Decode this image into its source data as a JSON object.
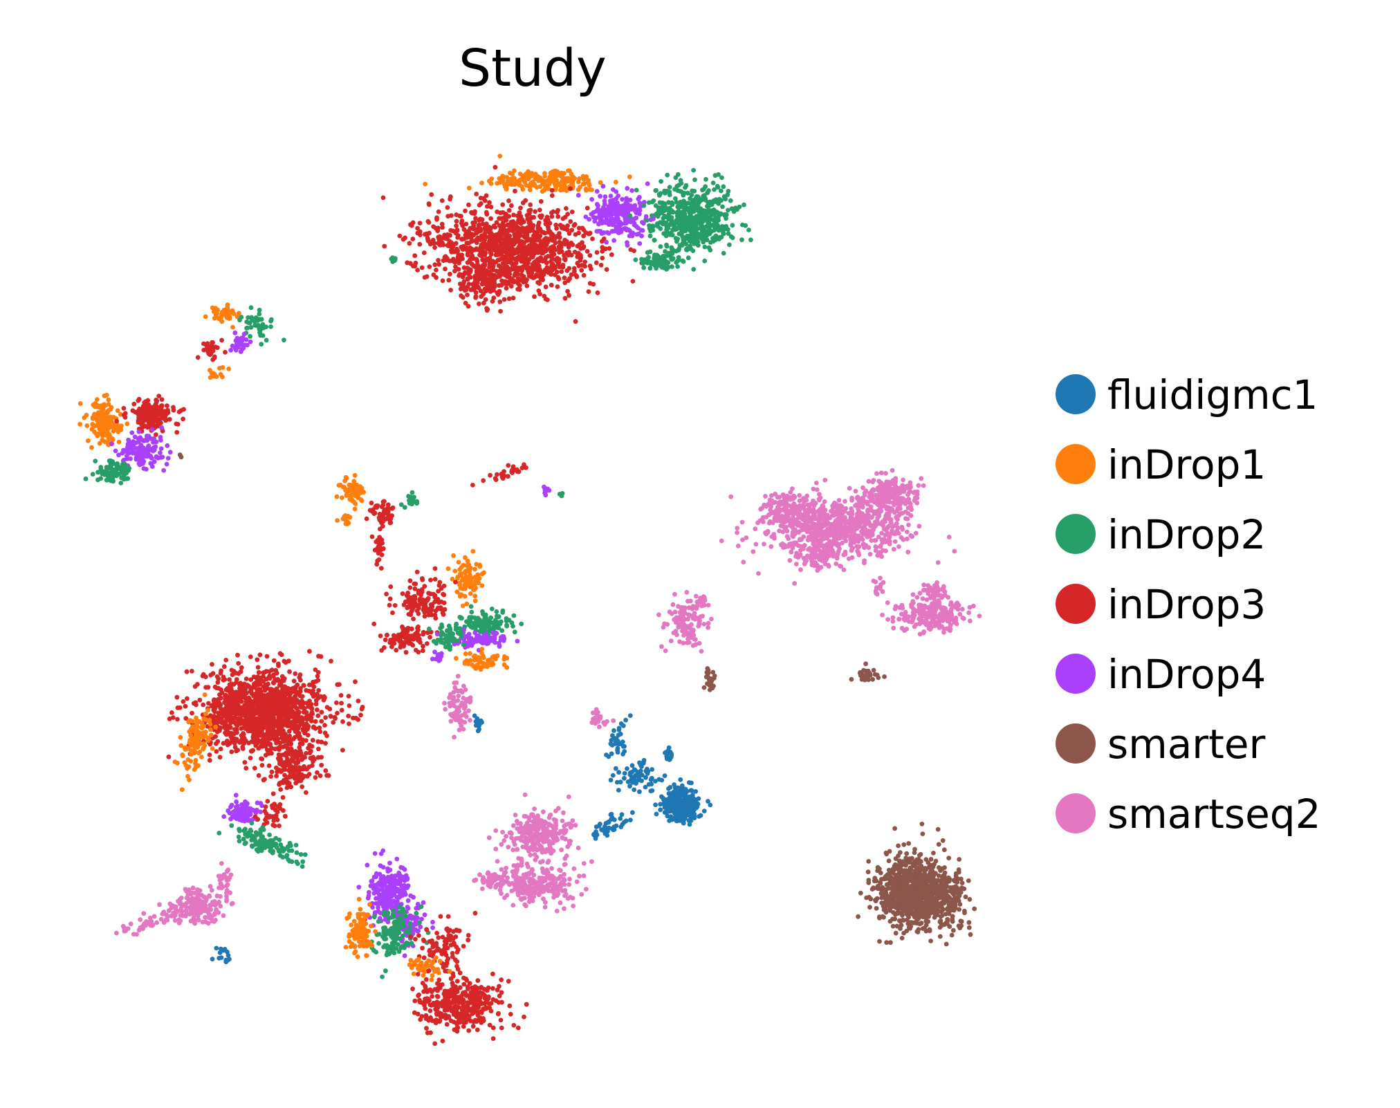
{
  "chart_data": {
    "type": "scatter",
    "title": "Study",
    "xlabel": "",
    "ylabel": "",
    "axes_visible": false,
    "grid": false,
    "legend_position": "right",
    "point_colors": {
      "fluidigmc1": "#1f77b4",
      "inDrop1": "#ff7f0e",
      "inDrop2": "#279e68",
      "inDrop3": "#d62728",
      "inDrop4": "#aa40fc",
      "smarter": "#8c564b",
      "smartseq2": "#e377c2"
    },
    "series": [
      {
        "name": "fluidigmc1"
      },
      {
        "name": "inDrop1"
      },
      {
        "name": "inDrop2"
      },
      {
        "name": "inDrop3"
      },
      {
        "name": "inDrop4"
      },
      {
        "name": "smarter"
      },
      {
        "name": "smartseq2"
      }
    ]
  }
}
